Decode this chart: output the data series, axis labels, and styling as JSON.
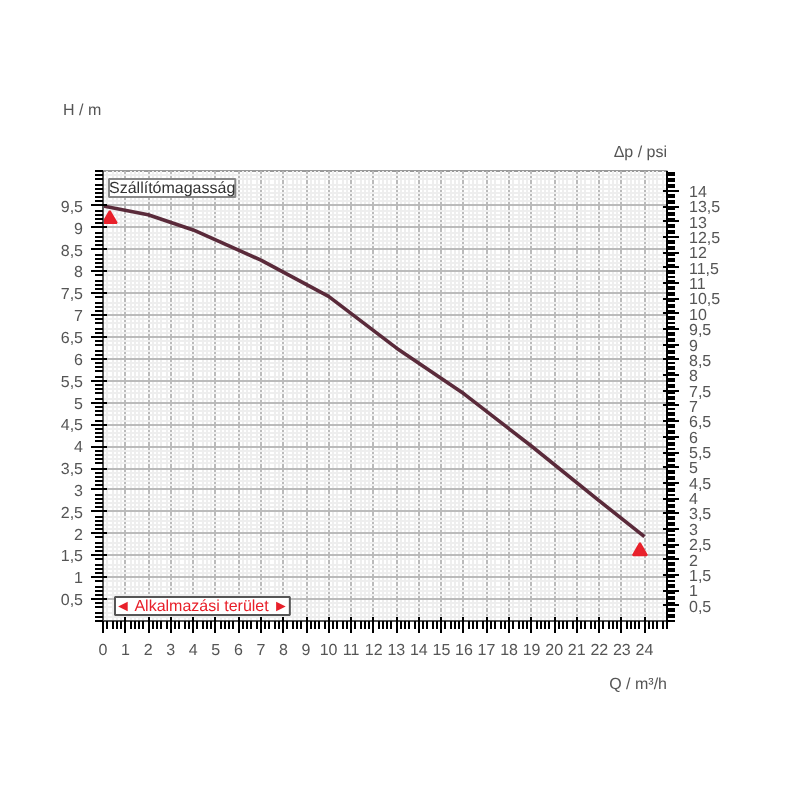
{
  "chart_data": {
    "type": "line",
    "title": "Szállítómagasság",
    "xlabel": "Q / m³/h",
    "ylabel": "H / m",
    "y2label": "Δp / psi",
    "x": [
      0,
      2,
      4,
      7,
      10,
      13,
      16,
      19,
      22,
      24
    ],
    "series": [
      {
        "color": "#5a2a3a",
        "values": [
          9.5,
          9.3,
          8.95,
          8.26,
          7.43,
          6.25,
          5.2,
          4.0,
          2.75,
          1.93
        ]
      },
      {
        "type": "scatter",
        "marker": "triangle",
        "color": "#e8202a",
        "x": [
          0.3,
          23.8
        ],
        "values": [
          9.2,
          1.6
        ]
      }
    ],
    "annotations": [
      "◄ Alkalmazási terület ►"
    ],
    "xlim": [
      0,
      25
    ],
    "xticks": [
      0,
      1,
      2,
      3,
      4,
      5,
      6,
      7,
      8,
      9,
      10,
      11,
      12,
      13,
      14,
      15,
      16,
      17,
      18,
      19,
      20,
      21,
      22,
      23,
      24
    ],
    "ylim": [
      0,
      10.3
    ],
    "yticks": [
      {
        "value": 0.5,
        "label": "0,5"
      },
      1,
      {
        "value": 1.5,
        "label": "1,5"
      },
      2,
      {
        "value": 2.5,
        "label": "2,5"
      },
      3,
      {
        "value": 3.5,
        "label": "3,5"
      },
      4,
      {
        "value": 4.5,
        "label": "4,5"
      },
      5,
      {
        "value": 5.5,
        "label": "5,5"
      },
      6,
      {
        "value": 6.5,
        "label": "6,5"
      },
      7,
      {
        "value": 7.5,
        "label": "7,5"
      },
      8,
      {
        "value": 8.5,
        "label": "8,5"
      },
      9,
      {
        "value": 9.5,
        "label": "9,5"
      }
    ],
    "y2lim": [
      0,
      14.65
    ],
    "y2ticks": [
      {
        "value": 0.5,
        "label": "0,5"
      },
      1,
      {
        "value": 1.5,
        "label": "1,5"
      },
      2,
      {
        "value": 2.5,
        "label": "2,5"
      },
      3,
      {
        "value": 3.5,
        "label": "3,5"
      },
      4,
      {
        "value": 4.5,
        "label": "4,5"
      },
      5,
      {
        "value": 5.5,
        "label": "5,5"
      },
      6,
      {
        "value": 6.5,
        "label": "6,5"
      },
      7,
      {
        "value": 7.5,
        "label": "7,5"
      },
      8,
      {
        "value": 8.5,
        "label": "8,5"
      },
      9,
      {
        "value": 9.5,
        "label": "9,5"
      },
      10,
      {
        "value": 10.5,
        "label": "10,5"
      },
      11,
      {
        "value": 11.5,
        "label": "11,5"
      },
      12,
      {
        "value": 12.5,
        "label": "12,5"
      },
      13,
      {
        "value": 13.5,
        "label": "13,5"
      },
      14
    ],
    "grid": true,
    "line_style": "solid"
  }
}
